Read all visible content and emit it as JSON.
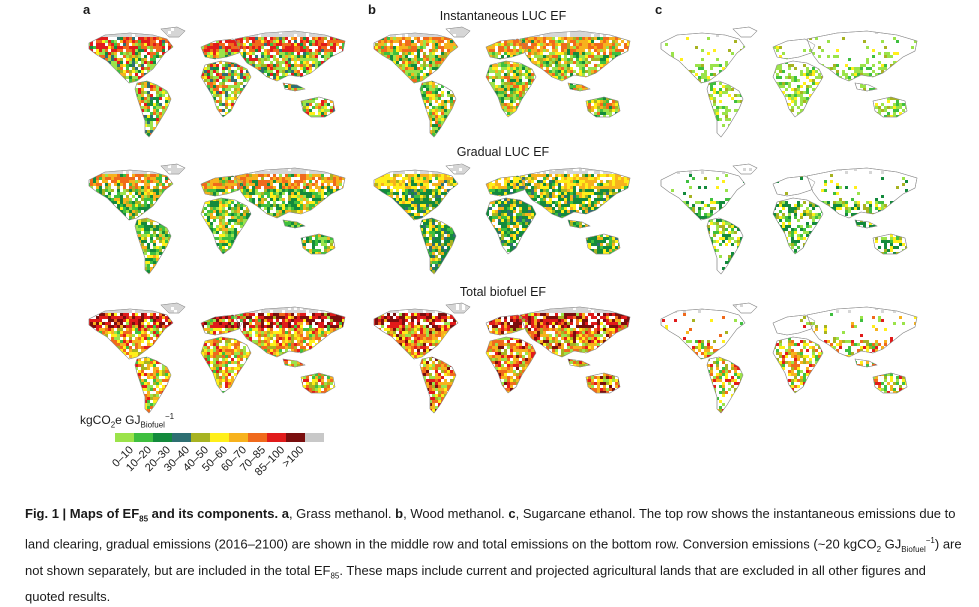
{
  "panel_labels": [
    "a",
    "b",
    "c"
  ],
  "row_titles": [
    "Instantaneous LUC EF",
    "Gradual LUC EF",
    "Total biofuel EF"
  ],
  "legend": {
    "unit_main": "kgCO",
    "unit_sub2": "2",
    "unit_mid": "e GJ",
    "unit_sub": "Biofuel",
    "unit_sup": "−1",
    "bins": [
      {
        "label": "0–10",
        "color": "#9be34a"
      },
      {
        "label": "10–20",
        "color": "#3fbf3f"
      },
      {
        "label": "20–30",
        "color": "#138a3c"
      },
      {
        "label": "30–40",
        "color": "#2e6f72"
      },
      {
        "label": "40–50",
        "color": "#a7b321"
      },
      {
        "label": "50–60",
        "color": "#ffef1a"
      },
      {
        "label": "60–70",
        "color": "#f7b21d"
      },
      {
        "label": "70–85",
        "color": "#f06a1c"
      },
      {
        "label": "85–100",
        "color": "#e11b1b"
      },
      {
        "label": ">100",
        "color": "#7a0e0e"
      },
      {
        "label": "",
        "color": "#c8c8c8"
      }
    ]
  },
  "caption": {
    "fig": "Fig. 1 | Maps of EF",
    "fig_sub": "85",
    "fig_tail": " and its components.",
    "a_key": "a",
    "a_text": ", Grass methanol. ",
    "b_key": "b",
    "b_text": ", Wood methanol. ",
    "c_key": "c",
    "c_text": ", Sugarcane ethanol. The top row shows the instantaneous emissions due to land clearing, gradual emissions (2016–2100) are shown in the middle row and total emissions on the bottom row. Conversion emissions (~20 kgCO",
    "co2_sub": "2",
    "gj": " GJ",
    "gj_sub": "Biofuel",
    "gj_sup": "−1",
    "tail1": ") are not shown separately, but are included in the total EF",
    "tail_sub": "85",
    "tail2": ". These maps include current and projected agricultural lands that are excluded in all other figures and quoted results."
  }
}
